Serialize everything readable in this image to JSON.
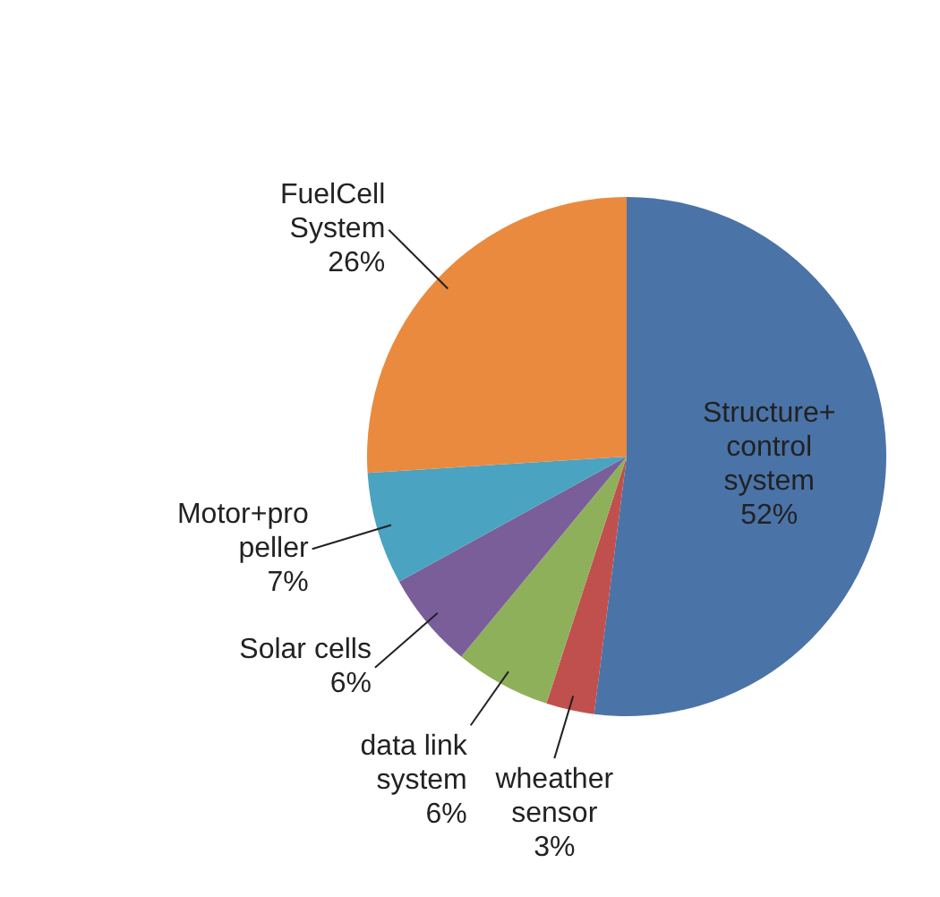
{
  "chart_data": {
    "type": "pie",
    "categories": [
      "Structure+\ncontrol\nsystem",
      "wheather\nsensor",
      "data link\nsystem",
      "Solar cells",
      "Motor+pro\npeller",
      "FuelCell\nSystem"
    ],
    "values": [
      52,
      3,
      6,
      6,
      7,
      26
    ],
    "value_labels": [
      "52%",
      "3%",
      "6%",
      "6%",
      "7%",
      "26%"
    ],
    "colors": [
      "#4a73a8",
      "#c0504d",
      "#8fb05a",
      "#7a5e9a",
      "#4aa3c0",
      "#e98a3f"
    ]
  }
}
